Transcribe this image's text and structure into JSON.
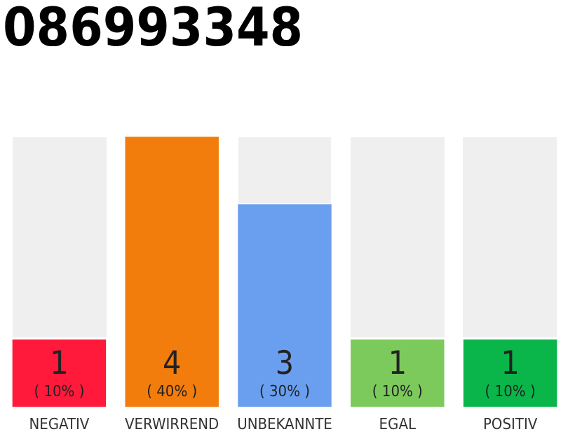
{
  "chart_data": {
    "type": "bar",
    "title": "086993348",
    "categories": [
      "NEGATIV",
      "VERWIRREND",
      "UNBEKANNTE",
      "EGAL",
      "POSITIV"
    ],
    "values": [
      10,
      40,
      30,
      10,
      10
    ],
    "colors": [
      "#ff1a3c",
      "#f27c0c",
      "#6a9ff0",
      "#7cc95c",
      "#0ab54a"
    ],
    "value_labels": [
      "1\n( 10% )",
      "4\n( 40% )",
      "3\n( 30% )",
      "1\n( 10% )",
      "1\n( 10% )"
    ],
    "grid": false,
    "legend": false,
    "tick_labels": "x"
  }
}
